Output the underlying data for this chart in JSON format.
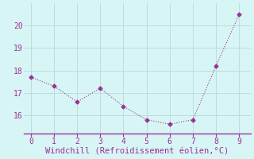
{
  "x": [
    0,
    1,
    2,
    3,
    4,
    5,
    6,
    7,
    8,
    9
  ],
  "y": [
    17.7,
    17.3,
    16.6,
    17.2,
    16.4,
    15.8,
    15.6,
    15.8,
    18.2,
    20.5
  ],
  "xlabel": "Windchill (Refroidissement éolien,°C)",
  "xlim": [
    -0.3,
    9.5
  ],
  "ylim": [
    15.2,
    21.0
  ],
  "yticks": [
    16,
    17,
    18,
    19,
    20
  ],
  "xticks": [
    0,
    1,
    2,
    3,
    4,
    5,
    6,
    7,
    8,
    9
  ],
  "line_color": "#993399",
  "marker": "D",
  "marker_size": 2.5,
  "line_width": 0.8,
  "bg_color": "#d8f5f5",
  "grid_color": "#bbdddd",
  "label_color": "#993399",
  "tick_color": "#993399",
  "font_family": "monospace",
  "xlabel_fontsize": 7.5,
  "tick_fontsize": 7
}
